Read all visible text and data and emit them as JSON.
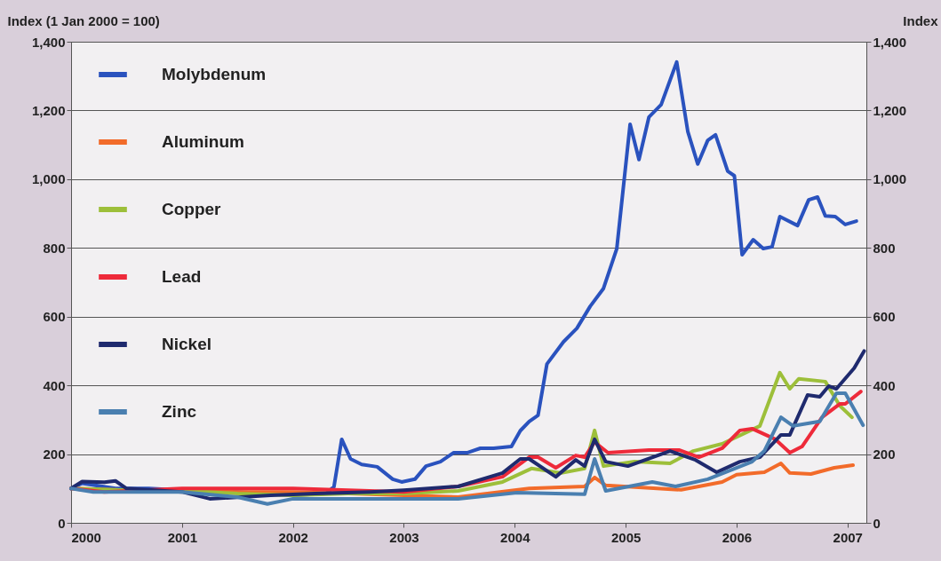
{
  "chart_data": {
    "type": "line",
    "ylabel": "Index (1 Jan 2000 = 100)",
    "y2label": "Index",
    "xlim": [
      2000,
      2007.17
    ],
    "xticks": [
      2000,
      2001,
      2002,
      2003,
      2004,
      2005,
      2006,
      2007
    ],
    "ylim": [
      0,
      1400
    ],
    "yticks": [
      0,
      200,
      400,
      600,
      800,
      {
        "value": 1000,
        "label": "1,000"
      },
      {
        "value": 1200,
        "label": "1,200"
      },
      {
        "value": 1400,
        "label": "1,400"
      }
    ],
    "y2lim": [
      0,
      1400
    ],
    "y2ticks": [
      0,
      200,
      400,
      600,
      800,
      {
        "value": 1000,
        "label": "1,000"
      },
      {
        "value": 1200,
        "label": "1,200"
      },
      {
        "value": 1400,
        "label": "1,400"
      }
    ],
    "grid": "y",
    "legend": "top left",
    "line_style": "solid",
    "marker": "none",
    "series": [
      {
        "name": "Molybdenum",
        "color": "#2a52be",
        "x": [
          2000,
          2000.1,
          2000.4,
          2000.7,
          2001,
          2001.5,
          2002,
          2002.3,
          2002.37,
          2002.44,
          2002.52,
          2002.62,
          2002.76,
          2002.9,
          2002.98,
          2003.1,
          2003.2,
          2003.33,
          2003.45,
          2003.57,
          2003.69,
          2003.81,
          2003.97,
          2004.05,
          2004.13,
          2004.21,
          2004.29,
          2004.44,
          2004.56,
          2004.68,
          2004.8,
          2004.92,
          2005.04,
          2005.12,
          2005.21,
          2005.32,
          2005.46,
          2005.56,
          2005.65,
          2005.74,
          2005.81,
          2005.92,
          2005.98,
          2006.05,
          2006.15,
          2006.24,
          2006.32,
          2006.39,
          2006.55,
          2006.65,
          2006.73,
          2006.8,
          2006.89,
          2006.98,
          2007.08
        ],
        "values": [
          100,
          115,
          100,
          100,
          95,
          90,
          80,
          85,
          105,
          243,
          186,
          170,
          163,
          127,
          119,
          127,
          165,
          178,
          204,
          204,
          217,
          217,
          222,
          268,
          295,
          313,
          462,
          527,
          566,
          630,
          682,
          798,
          1160,
          1057,
          1181,
          1217,
          1341,
          1139,
          1044,
          1113,
          1129,
          1023,
          1010,
          780,
          824,
          798,
          803,
          891,
          865,
          940,
          948,
          893,
          891,
          868,
          878
        ]
      },
      {
        "name": "Aluminum",
        "color": "#f26b2a",
        "x": [
          2000,
          2000.5,
          2001,
          2001.5,
          2002,
          2002.5,
          2003,
          2003.49,
          2004.13,
          2004.63,
          2004.72,
          2004.82,
          2005.5,
          2005.87,
          2006,
          2006.25,
          2006.4,
          2006.48,
          2006.67,
          2006.88,
          2007.05
        ],
        "values": [
          100,
          95,
          95,
          90,
          90,
          85,
          80,
          75,
          100,
          106,
          132,
          109,
          96,
          119,
          140,
          147,
          173,
          145,
          142,
          160,
          168
        ]
      },
      {
        "name": "Copper",
        "color": "#9dbf3a",
        "x": [
          2000,
          2000.5,
          2001,
          2001.5,
          2002,
          2002.5,
          2003,
          2003.49,
          2003.89,
          2004.15,
          2004.42,
          2004.63,
          2004.72,
          2004.8,
          2005.08,
          2005.4,
          2005.61,
          2005.87,
          2006.21,
          2006.39,
          2006.48,
          2006.56,
          2006.8,
          2006.93,
          2007.04
        ],
        "values": [
          100,
          95,
          95,
          85,
          80,
          85,
          85,
          93,
          119,
          158,
          145,
          158,
          269,
          165,
          178,
          173,
          209,
          230,
          282,
          437,
          390,
          419,
          411,
          341,
          307
        ]
      },
      {
        "name": "Lead",
        "color": "#ee2a3a",
        "x": [
          2000,
          2000.3,
          2001,
          2001.5,
          2002,
          2002.5,
          2003,
          2003.49,
          2003.89,
          2004.13,
          2004.21,
          2004.37,
          2004.55,
          2004.63,
          2004.72,
          2004.84,
          2005.21,
          2005.48,
          2005.66,
          2005.87,
          2006.03,
          2006.14,
          2006.35,
          2006.48,
          2006.59,
          2006.77,
          2006.93,
          2006.98,
          2007.12
        ],
        "values": [
          100,
          90,
          100,
          100,
          100,
          95,
          90,
          106,
          134,
          191,
          191,
          160,
          196,
          191,
          235,
          204,
          212,
          212,
          191,
          217,
          269,
          274,
          243,
          204,
          222,
          307,
          346,
          346,
          382
        ]
      },
      {
        "name": "Nickel",
        "color": "#1f2a6e",
        "x": [
          2000,
          2000.1,
          2000.3,
          2000.4,
          2000.5,
          2001,
          2001.25,
          2001.8,
          2002.2,
          2002.7,
          2003,
          2003.49,
          2003.89,
          2004.05,
          2004.13,
          2004.37,
          2004.55,
          2004.63,
          2004.72,
          2004.82,
          2005.02,
          2005.4,
          2005.63,
          2005.82,
          2006.03,
          2006.21,
          2006.4,
          2006.48,
          2006.64,
          2006.75,
          2006.83,
          2006.9,
          2007.06,
          2007.15
        ],
        "values": [
          100,
          120,
          118,
          122,
          100,
          90,
          70,
          80,
          85,
          90,
          95,
          106,
          145,
          186,
          186,
          134,
          183,
          165,
          243,
          178,
          165,
          209,
          183,
          147,
          178,
          191,
          256,
          256,
          372,
          367,
          398,
          390,
          450,
          500
        ]
      },
      {
        "name": "Zinc",
        "color": "#4a7fb0",
        "x": [
          2000,
          2000.2,
          2000.5,
          2001,
          2001.5,
          2001.77,
          2002,
          2002.5,
          2003,
          2003.49,
          2004.02,
          2004.63,
          2004.72,
          2004.82,
          2005.24,
          2005.45,
          2005.74,
          2006.14,
          2006.25,
          2006.4,
          2006.51,
          2006.75,
          2006.9,
          2006.98,
          2007.14
        ],
        "values": [
          100,
          90,
          90,
          90,
          75,
          55,
          70,
          70,
          70,
          70,
          88,
          83,
          186,
          93,
          119,
          106,
          127,
          178,
          209,
          307,
          282,
          295,
          377,
          377,
          284
        ]
      }
    ]
  }
}
